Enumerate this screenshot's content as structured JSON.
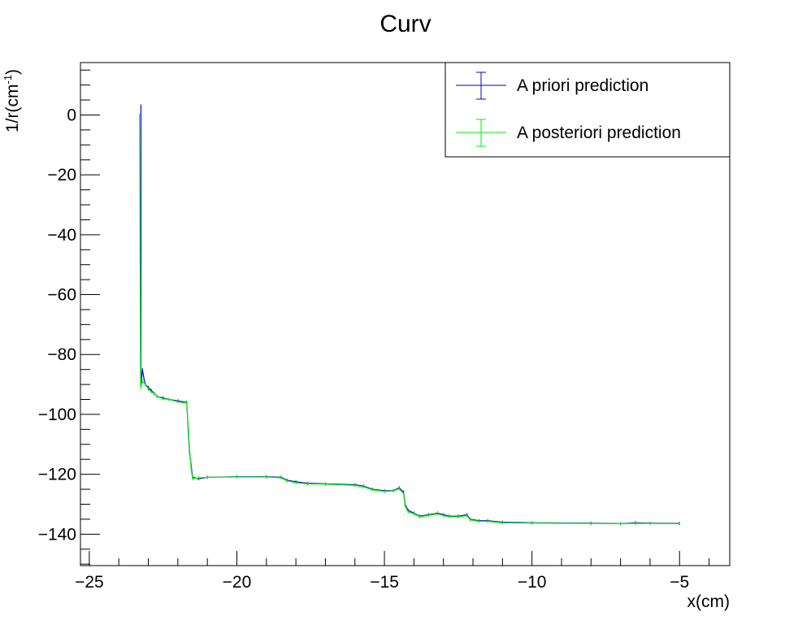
{
  "chart_data": {
    "type": "line",
    "title": "Curv",
    "xlabel": "x(cm)",
    "ylabel_main": "1/r(cm",
    "ylabel_sup": "-1",
    "ylabel_close": ")",
    "xlim": [
      -25.3,
      -3.3
    ],
    "ylim": [
      -150.5,
      17.5
    ],
    "x_ticks": [
      -25,
      -20,
      -15,
      -10,
      -5
    ],
    "x_tick_labels": [
      "−25",
      "−20",
      "−15",
      "−10",
      "−5"
    ],
    "y_ticks": [
      0,
      -20,
      -40,
      -60,
      -80,
      -100,
      -120,
      -140
    ],
    "y_tick_labels": [
      "0",
      "−20",
      "−40",
      "−60",
      "−80",
      "−100",
      "−120",
      "−140"
    ],
    "legend_position": "top-right",
    "series": [
      {
        "name": "A priori prediction",
        "color": "#0000cc",
        "points": [
          [
            -23.25,
            3
          ],
          [
            -23.25,
            -90
          ],
          [
            -23.2,
            -85
          ],
          [
            -23.15,
            -88
          ],
          [
            -23.1,
            -90
          ],
          [
            -23.0,
            -91
          ],
          [
            -22.9,
            -92
          ],
          [
            -22.8,
            -93
          ],
          [
            -22.7,
            -94
          ],
          [
            -22.5,
            -94.5
          ],
          [
            -22.3,
            -95
          ],
          [
            -22.0,
            -95.5
          ],
          [
            -21.7,
            -96
          ],
          [
            -21.65,
            -105
          ],
          [
            -21.6,
            -113
          ],
          [
            -21.55,
            -117
          ],
          [
            -21.5,
            -121
          ],
          [
            -21.3,
            -121.5
          ],
          [
            -21.0,
            -121
          ],
          [
            -20.0,
            -120.8
          ],
          [
            -19.0,
            -120.8
          ],
          [
            -18.5,
            -121
          ],
          [
            -18.3,
            -122
          ],
          [
            -18.0,
            -122.5
          ],
          [
            -17.6,
            -123
          ],
          [
            -17.0,
            -123.2
          ],
          [
            -16.0,
            -123.5
          ],
          [
            -15.7,
            -124
          ],
          [
            -15.4,
            -125
          ],
          [
            -15.0,
            -125.5
          ],
          [
            -14.7,
            -125.5
          ],
          [
            -14.5,
            -124.5
          ],
          [
            -14.35,
            -126
          ],
          [
            -14.3,
            -130
          ],
          [
            -14.2,
            -132
          ],
          [
            -14.0,
            -133
          ],
          [
            -13.8,
            -134
          ],
          [
            -13.5,
            -133.5
          ],
          [
            -13.2,
            -133
          ],
          [
            -13.0,
            -133.5
          ],
          [
            -12.8,
            -134
          ],
          [
            -12.5,
            -134
          ],
          [
            -12.2,
            -133.5
          ],
          [
            -12.1,
            -135
          ],
          [
            -11.8,
            -135.5
          ],
          [
            -11.5,
            -135.5
          ],
          [
            -11.0,
            -136
          ],
          [
            -10.0,
            -136.2
          ],
          [
            -8.0,
            -136.3
          ],
          [
            -7.0,
            -136.5
          ],
          [
            -6.5,
            -136.2
          ],
          [
            -6.0,
            -136.3
          ],
          [
            -5.0,
            -136.4
          ]
        ]
      },
      {
        "name": "A posteriori prediction",
        "color": "#00ee00",
        "points": [
          [
            -23.3,
            0
          ],
          [
            -23.28,
            -45
          ],
          [
            -23.26,
            -91
          ],
          [
            -23.2,
            -89
          ],
          [
            -23.1,
            -90
          ],
          [
            -23.0,
            -91.5
          ],
          [
            -22.9,
            -92.5
          ],
          [
            -22.8,
            -93
          ],
          [
            -22.7,
            -94
          ],
          [
            -22.5,
            -94.8
          ],
          [
            -22.3,
            -95
          ],
          [
            -22.0,
            -95.8
          ],
          [
            -21.7,
            -96.2
          ],
          [
            -21.65,
            -104
          ],
          [
            -21.6,
            -112
          ],
          [
            -21.55,
            -118
          ],
          [
            -21.5,
            -121.5
          ],
          [
            -21.3,
            -121.2
          ],
          [
            -21.0,
            -121
          ],
          [
            -20.0,
            -120.9
          ],
          [
            -19.0,
            -120.9
          ],
          [
            -18.5,
            -121.2
          ],
          [
            -18.3,
            -122.2
          ],
          [
            -18.0,
            -122.8
          ],
          [
            -17.6,
            -123.2
          ],
          [
            -17.0,
            -123.3
          ],
          [
            -16.0,
            -123.7
          ],
          [
            -15.7,
            -124.2
          ],
          [
            -15.4,
            -125.2
          ],
          [
            -15.0,
            -125.7
          ],
          [
            -14.7,
            -125.6
          ],
          [
            -14.5,
            -124.8
          ],
          [
            -14.35,
            -126.5
          ],
          [
            -14.3,
            -130.5
          ],
          [
            -14.2,
            -132.5
          ],
          [
            -14.0,
            -133.2
          ],
          [
            -13.8,
            -134.2
          ],
          [
            -13.5,
            -133.7
          ],
          [
            -13.2,
            -133.2
          ],
          [
            -13.0,
            -133.8
          ],
          [
            -12.8,
            -134.2
          ],
          [
            -12.5,
            -134.2
          ],
          [
            -12.2,
            -133.8
          ],
          [
            -12.1,
            -135.2
          ],
          [
            -11.8,
            -135.7
          ],
          [
            -11.5,
            -135.7
          ],
          [
            -11.0,
            -136.2
          ],
          [
            -10.0,
            -136.3
          ],
          [
            -8.0,
            -136.4
          ],
          [
            -7.0,
            -136.5
          ],
          [
            -6.5,
            -136.4
          ],
          [
            -6.0,
            -136.4
          ],
          [
            -5.0,
            -136.5
          ]
        ]
      }
    ]
  }
}
